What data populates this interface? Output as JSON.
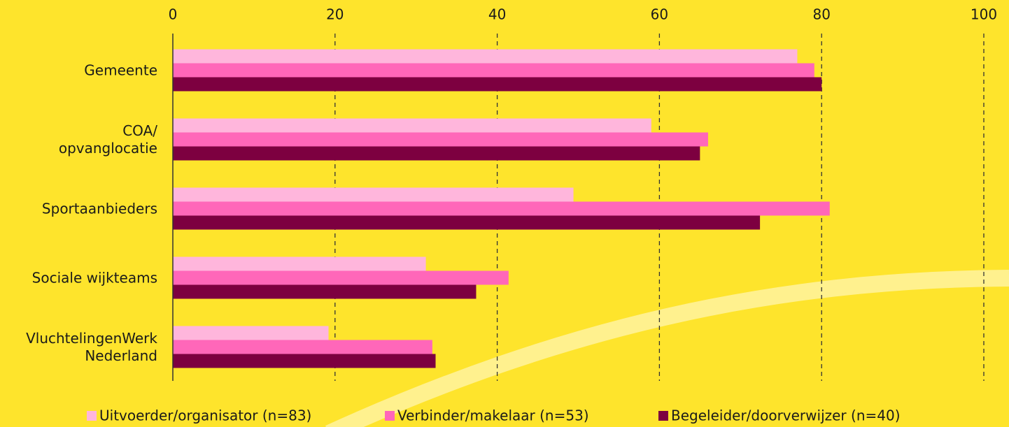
{
  "chart_data": {
    "type": "hbar",
    "categories": [
      "Gemeente",
      "COA/\nopvanglocatie",
      "Sportaanbieders",
      "Sociale wijkteams",
      "VluchtelingenWerk\nNederland"
    ],
    "series": [
      {
        "name": "Uitvoerder/organisator (n=83)",
        "color": "#ffb6dc",
        "values": [
          77,
          59,
          49.4,
          31.2,
          19.2
        ]
      },
      {
        "name": "Verbinder/makelaar (n=53)",
        "color": "#ff67b9",
        "values": [
          79.1,
          66,
          81,
          41.4,
          32
        ]
      },
      {
        "name": "Begeleider/doorverwijzer (n=40)",
        "color": "#7d0040",
        "values": [
          80,
          65,
          72.4,
          37.4,
          32.4
        ]
      }
    ],
    "xlim": [
      0,
      100
    ],
    "xticks": [
      0,
      20,
      40,
      60,
      80,
      100
    ],
    "grid": true,
    "legend": "bottom"
  }
}
